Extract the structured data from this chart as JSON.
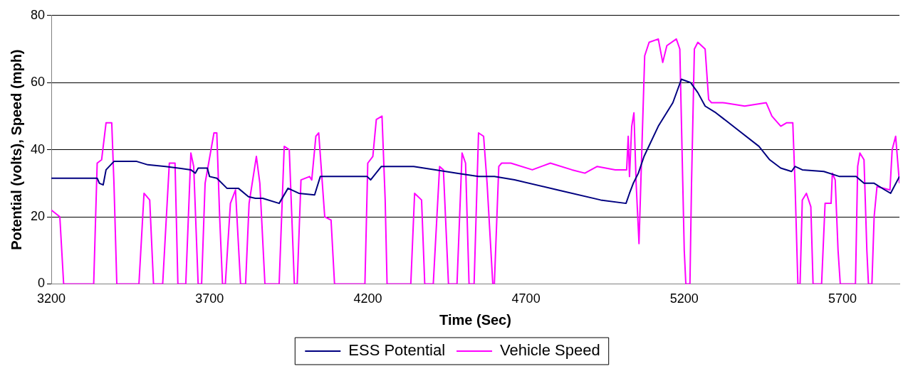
{
  "chart_data": {
    "type": "line",
    "xlabel": "Time (Sec)",
    "ylabel": "Potential (volts), Speed (mph)",
    "xlim": [
      3200,
      5880
    ],
    "xticks": [
      3200,
      3700,
      4200,
      4700,
      5200,
      5700
    ],
    "ylim": [
      0,
      80
    ],
    "yticks": [
      0,
      20,
      40,
      60,
      80
    ],
    "grid": "y",
    "legend": "bottom",
    "marker": "none",
    "line_style": "solid",
    "series": [
      {
        "name": "ESS Potential",
        "color": "#000080",
        "x": [
          3200,
          3345,
          3352,
          3364,
          3373,
          3398,
          3470,
          3505,
          3561,
          3641,
          3655,
          3664,
          3693,
          3700,
          3723,
          3755,
          3791,
          3823,
          3845,
          3868,
          3920,
          3948,
          3982,
          4032,
          4050,
          4198,
          4209,
          4243,
          4345,
          4414,
          4482,
          4550,
          4600,
          4664,
          4800,
          4936,
          5016,
          5027,
          5039,
          5055,
          5073,
          5118,
          5164,
          5191,
          5220,
          5243,
          5266,
          5300,
          5368,
          5436,
          5470,
          5505,
          5539,
          5550,
          5573,
          5641,
          5691,
          5743,
          5768,
          5800,
          5834,
          5852,
          5880
        ],
        "values": [
          31.5,
          31.5,
          30,
          29.5,
          34,
          36.5,
          36.5,
          35.5,
          35,
          34,
          33,
          34.5,
          34.5,
          32,
          31.5,
          28.5,
          28.5,
          26,
          25.5,
          25.5,
          24,
          28.5,
          27,
          26.5,
          32,
          32,
          31,
          35,
          35,
          34,
          33,
          32,
          32,
          31,
          28,
          25,
          24,
          27,
          30,
          33,
          38,
          47,
          54,
          61,
          60,
          57,
          53,
          51,
          46,
          41,
          37,
          34.5,
          33.5,
          35,
          34,
          33.5,
          32,
          32,
          30,
          30,
          28,
          27,
          32
        ]
      },
      {
        "name": "Vehicle Speed",
        "color": "#ff00ff",
        "x": [
          3200,
          3227,
          3239,
          3334,
          3345,
          3359,
          3373,
          3391,
          3398,
          3407,
          3477,
          3493,
          3511,
          3523,
          3552,
          3573,
          3591,
          3600,
          3625,
          3641,
          3650,
          3664,
          3675,
          3686,
          3714,
          3723,
          3732,
          3741,
          3750,
          3766,
          3782,
          3798,
          3814,
          3825,
          3848,
          3859,
          3875,
          3920,
          3936,
          3952,
          3968,
          3977,
          3989,
          4016,
          4023,
          4036,
          4045,
          4064,
          4084,
          4095,
          4191,
          4200,
          4216,
          4227,
          4245,
          4255,
          4261,
          4336,
          4348,
          4370,
          4380,
          4407,
          4427,
          4439,
          4455,
          4482,
          4498,
          4509,
          4520,
          4536,
          4550,
          4566,
          4577,
          4595,
          4600,
          4614,
          4623,
          4652,
          4720,
          4777,
          4845,
          4886,
          4925,
          4982,
          5018,
          5023,
          5027,
          5034,
          5041,
          5048,
          5057,
          5066,
          5075,
          5089,
          5118,
          5132,
          5145,
          5175,
          5186,
          5193,
          5200,
          5205,
          5218,
          5223,
          5232,
          5243,
          5266,
          5277,
          5286,
          5323,
          5391,
          5459,
          5477,
          5505,
          5523,
          5543,
          5550,
          5559,
          5566,
          5573,
          5586,
          5600,
          5607,
          5634,
          5645,
          5664,
          5668,
          5677,
          5686,
          5693,
          5741,
          5748,
          5755,
          5768,
          5777,
          5782,
          5793,
          5800,
          5809,
          5850,
          5857,
          5868,
          5880
        ],
        "values": [
          22,
          20,
          0,
          0,
          36,
          37,
          48,
          48,
          30,
          0,
          0,
          27,
          25,
          0,
          0,
          36,
          36,
          0,
          0,
          39,
          35,
          0,
          0,
          30,
          45,
          45,
          20,
          0,
          0,
          24,
          28,
          0,
          0,
          24,
          38,
          30,
          0,
          0,
          41,
          40,
          0,
          0,
          31,
          32,
          31,
          44,
          45,
          20,
          19,
          0,
          0,
          36,
          38,
          49,
          50,
          25,
          0,
          0,
          27,
          25,
          0,
          0,
          35,
          34,
          0,
          0,
          39,
          36,
          0,
          0,
          45,
          44,
          30,
          0,
          0,
          35,
          36,
          36,
          34,
          36,
          34,
          33,
          35,
          34,
          34,
          44,
          32,
          47,
          51,
          30,
          12,
          40,
          68,
          72,
          73,
          66,
          71,
          73,
          70,
          40,
          10,
          0,
          0,
          30,
          70,
          72,
          70,
          55,
          54,
          54,
          53,
          54,
          50,
          47,
          48,
          48,
          30,
          0,
          0,
          25,
          27,
          23,
          0,
          0,
          24,
          24,
          33,
          31,
          10,
          0,
          0,
          35,
          39,
          37,
          10,
          0,
          0,
          20,
          29,
          28,
          40,
          44,
          30
        ]
      }
    ]
  }
}
